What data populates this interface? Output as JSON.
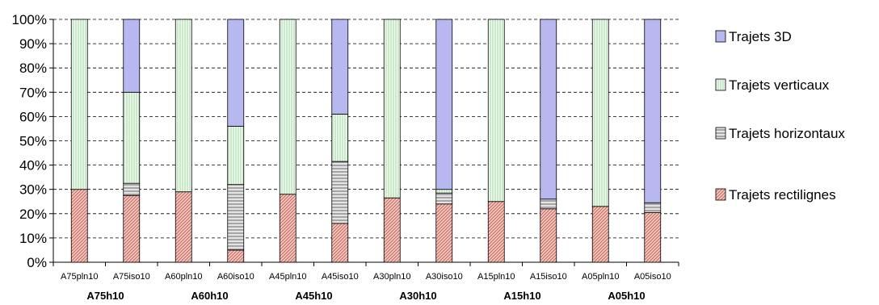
{
  "chart_data": {
    "type": "bar",
    "stacked": true,
    "percent": true,
    "categories": [
      "A75pln10",
      "A75iso10",
      "A60pln10",
      "A60iso10",
      "A45pln10",
      "A45iso10",
      "A30pln10",
      "A30iso10",
      "A15pln10",
      "A15iso10",
      "A05pln10",
      "A05iso10"
    ],
    "groups": [
      {
        "label": "A75h10",
        "members": [
          0,
          1
        ]
      },
      {
        "label": "A60h10",
        "members": [
          2,
          3
        ]
      },
      {
        "label": "A45h10",
        "members": [
          4,
          5
        ]
      },
      {
        "label": "A30h10",
        "members": [
          6,
          7
        ]
      },
      {
        "label": "A15h10",
        "members": [
          8,
          9
        ]
      },
      {
        "label": "A05h10",
        "members": [
          10,
          11
        ]
      }
    ],
    "series": [
      {
        "name": "Trajets rectilignes",
        "color": "#e6b0a8",
        "stroke": "#b03020",
        "pattern": "diag",
        "values": [
          30,
          27.5,
          29,
          5,
          28,
          16,
          26.5,
          24,
          25,
          22,
          23,
          20.5
        ]
      },
      {
        "name": "Trajets horizontaux",
        "color": "#d8d8d8",
        "stroke": "#555555",
        "pattern": "hlines",
        "values": [
          0,
          5,
          0,
          27,
          0,
          25.5,
          0,
          4.5,
          0,
          4,
          0,
          4
        ]
      },
      {
        "name": "Trajets verticaux",
        "color": "#e6f5e6",
        "stroke": "#7fbf7f",
        "pattern": "vlines",
        "values": [
          70,
          37.5,
          71,
          24,
          72,
          19.5,
          73.5,
          1.5,
          75,
          0,
          77,
          0
        ]
      },
      {
        "name": "Trajets 3D",
        "color": "#b8b8f0",
        "stroke": "#5a5acf",
        "pattern": "solid",
        "values": [
          0,
          30,
          0,
          44,
          0,
          39,
          0,
          70,
          0,
          74,
          0,
          75.5
        ]
      }
    ],
    "ylim": [
      0,
      100
    ],
    "yticks": [
      "0%",
      "10%",
      "20%",
      "30%",
      "40%",
      "50%",
      "60%",
      "70%",
      "80%",
      "90%",
      "100%"
    ],
    "grid": "horizontal dashed",
    "legend_position": "right",
    "title": "",
    "xlabel": "",
    "ylabel": ""
  }
}
